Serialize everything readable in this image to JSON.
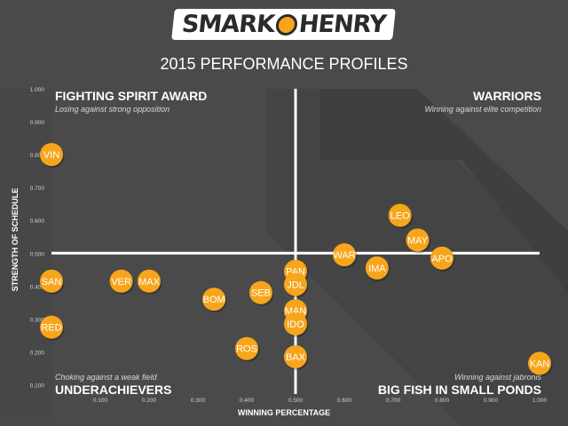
{
  "header": {
    "logo_left": "SMARK",
    "logo_right": "HENRY",
    "subtitle": "2015 PERFORMANCE PROFILES"
  },
  "quadrants": {
    "top_left": {
      "title": "FIGHTING SPIRIT AWARD",
      "subtitle": "Losing against strong opposition"
    },
    "top_right": {
      "title": "WARRIORS",
      "subtitle": "Winning against elite competition"
    },
    "bottom_left": {
      "title": "UNDERACHIEVERS",
      "subtitle": "Choking against a weak field"
    },
    "bottom_right": {
      "title": "BIG FISH IN SMALL PONDS",
      "subtitle": "Winning against jabronis"
    }
  },
  "colors": {
    "background": "#4a4a4a",
    "marker": "#f7a51c",
    "crosshair": "#ffffff"
  },
  "chart_data": {
    "type": "scatter",
    "xlabel": "WINNING PERCENTAGE",
    "ylabel": "STRENGTH OF SCHEDULE",
    "xlim": [
      0,
      1
    ],
    "ylim": [
      0.05,
      1
    ],
    "xticks": [
      "0.100",
      "0.200",
      "0.300",
      "0.400",
      "0.500",
      "0.600",
      "0.700",
      "0.800",
      "0.900",
      "1.000"
    ],
    "yticks": [
      "0.100",
      "0.200",
      "0.300",
      "0.400",
      "0.500",
      "0.600",
      "0.700",
      "0.800",
      "0.900",
      "1.000"
    ],
    "crosshair": {
      "x": 0.5,
      "y": 0.5
    },
    "points": [
      {
        "label": "VIN",
        "x": 0.0,
        "y": 0.8
      },
      {
        "label": "LEO",
        "x": 0.714,
        "y": 0.615
      },
      {
        "label": "MAY",
        "x": 0.75,
        "y": 0.54
      },
      {
        "label": "APO",
        "x": 0.8,
        "y": 0.485
      },
      {
        "label": "WAR",
        "x": 0.6,
        "y": 0.495
      },
      {
        "label": "IMA",
        "x": 0.667,
        "y": 0.455
      },
      {
        "label": "PAN",
        "x": 0.5,
        "y": 0.445
      },
      {
        "label": "JDL",
        "x": 0.5,
        "y": 0.405
      },
      {
        "label": "SAN",
        "x": 0.0,
        "y": 0.415
      },
      {
        "label": "VER",
        "x": 0.143,
        "y": 0.415
      },
      {
        "label": "MAX",
        "x": 0.2,
        "y": 0.415
      },
      {
        "label": "SEB",
        "x": 0.429,
        "y": 0.38
      },
      {
        "label": "BOM",
        "x": 0.333,
        "y": 0.36
      },
      {
        "label": "MAN",
        "x": 0.5,
        "y": 0.325
      },
      {
        "label": "IDO",
        "x": 0.5,
        "y": 0.285
      },
      {
        "label": "RED",
        "x": 0.0,
        "y": 0.275
      },
      {
        "label": "ROS",
        "x": 0.4,
        "y": 0.21
      },
      {
        "label": "BAX",
        "x": 0.5,
        "y": 0.185
      },
      {
        "label": "KAN",
        "x": 1.0,
        "y": 0.165
      }
    ]
  }
}
